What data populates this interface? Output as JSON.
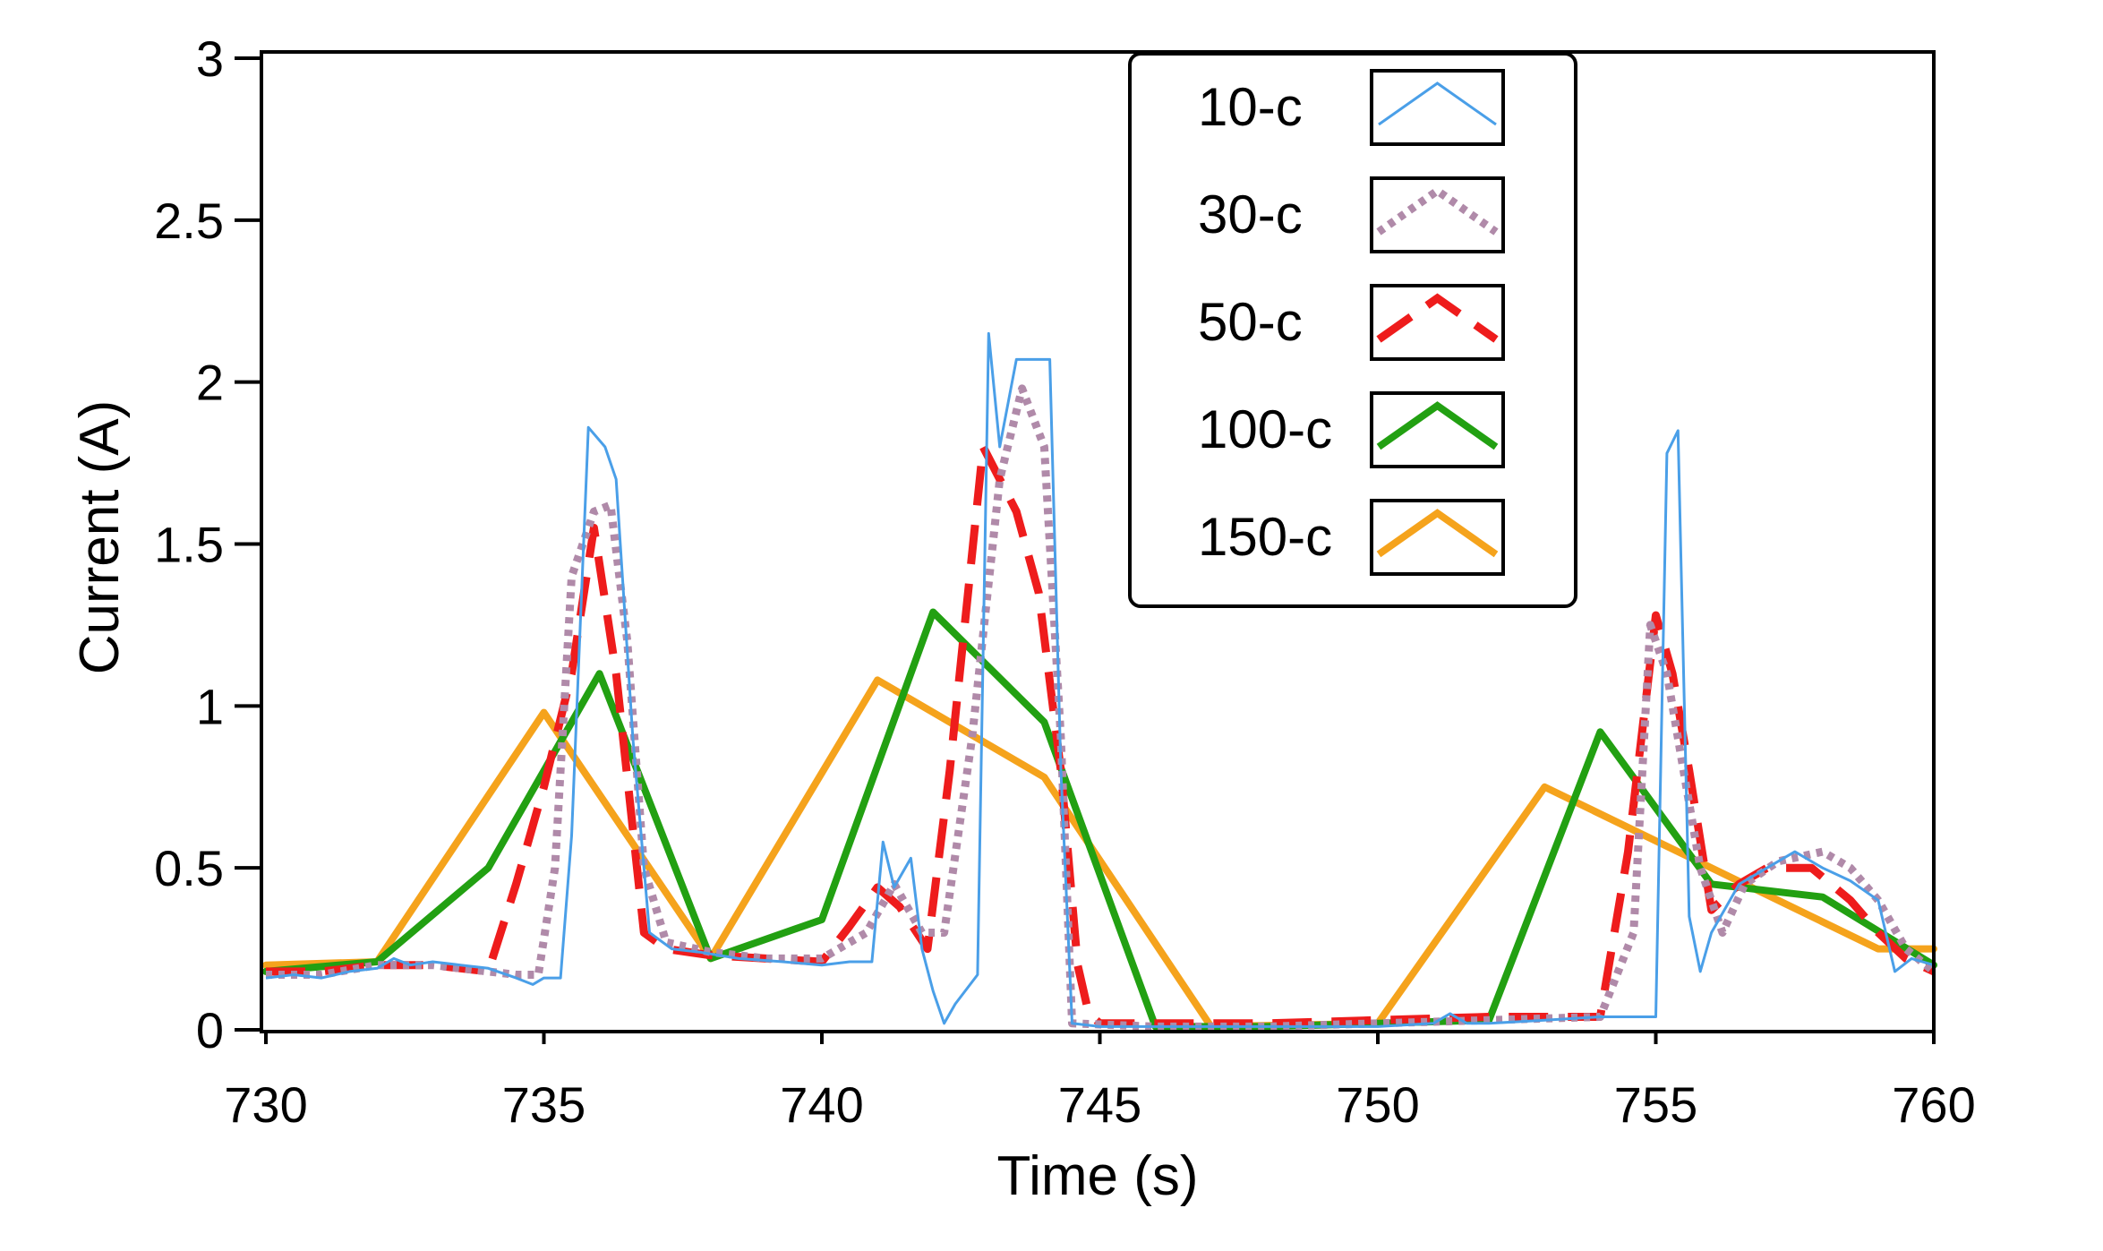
{
  "chart_data": {
    "type": "line",
    "title": "",
    "xlabel": "Time (s)",
    "ylabel": "Current (A)",
    "xlim": [
      730,
      760
    ],
    "ylim": [
      0,
      3
    ],
    "xticks": [
      730,
      735,
      740,
      745,
      750,
      755,
      760
    ],
    "xtick_labels": [
      "730",
      "735",
      "740",
      "745",
      "750",
      "755",
      "760"
    ],
    "yticks": [
      0,
      0.5,
      1,
      1.5,
      2,
      2.5,
      3
    ],
    "ytick_labels": [
      "0",
      "0.5",
      "1",
      "1.5",
      "2",
      "2.5",
      "3"
    ],
    "grid": false,
    "legend_position": "top-right",
    "series": [
      {
        "name": "10-c",
        "color": "#4a9fe8",
        "style": "solid-thin",
        "points": [
          [
            730,
            0.16
          ],
          [
            730.5,
            0.17
          ],
          [
            731,
            0.16
          ],
          [
            731.5,
            0.18
          ],
          [
            732,
            0.19
          ],
          [
            732.3,
            0.22
          ],
          [
            732.6,
            0.2
          ],
          [
            733,
            0.21
          ],
          [
            733.5,
            0.2
          ],
          [
            734,
            0.19
          ],
          [
            734.5,
            0.16
          ],
          [
            734.8,
            0.14
          ],
          [
            735,
            0.16
          ],
          [
            735.3,
            0.16
          ],
          [
            735.5,
            0.6
          ],
          [
            735.8,
            1.86
          ],
          [
            736.1,
            1.8
          ],
          [
            736.3,
            1.7
          ],
          [
            736.6,
            0.9
          ],
          [
            736.9,
            0.3
          ],
          [
            737.3,
            0.25
          ],
          [
            737.8,
            0.24
          ],
          [
            738.5,
            0.22
          ],
          [
            739.3,
            0.21
          ],
          [
            740,
            0.2
          ],
          [
            740.5,
            0.21
          ],
          [
            740.9,
            0.21
          ],
          [
            741.1,
            0.58
          ],
          [
            741.3,
            0.44
          ],
          [
            741.6,
            0.53
          ],
          [
            741.8,
            0.25
          ],
          [
            742,
            0.12
          ],
          [
            742.2,
            0.02
          ],
          [
            742.4,
            0.08
          ],
          [
            742.8,
            0.17
          ],
          [
            743,
            2.15
          ],
          [
            743.2,
            1.8
          ],
          [
            743.5,
            2.07
          ],
          [
            744.1,
            2.07
          ],
          [
            744.3,
            0.8
          ],
          [
            744.5,
            0.02
          ],
          [
            745,
            0.01
          ],
          [
            746,
            0.01
          ],
          [
            748,
            0.01
          ],
          [
            750,
            0.01
          ],
          [
            751,
            0.02
          ],
          [
            751.3,
            0.05
          ],
          [
            751.6,
            0.02
          ],
          [
            752,
            0.02
          ],
          [
            753,
            0.03
          ],
          [
            754,
            0.04
          ],
          [
            755,
            0.04
          ],
          [
            755.2,
            1.78
          ],
          [
            755.4,
            1.85
          ],
          [
            755.6,
            0.35
          ],
          [
            755.8,
            0.18
          ],
          [
            756,
            0.3
          ],
          [
            756.5,
            0.45
          ],
          [
            757,
            0.5
          ],
          [
            757.5,
            0.55
          ],
          [
            758,
            0.5
          ],
          [
            758.5,
            0.46
          ],
          [
            759,
            0.4
          ],
          [
            759.3,
            0.18
          ],
          [
            759.6,
            0.22
          ],
          [
            760,
            0.2
          ]
        ]
      },
      {
        "name": "30-c",
        "color": "#b08aa9",
        "style": "dotted",
        "points": [
          [
            730,
            0.17
          ],
          [
            731,
            0.17
          ],
          [
            732,
            0.2
          ],
          [
            733,
            0.2
          ],
          [
            734,
            0.18
          ],
          [
            734.5,
            0.17
          ],
          [
            734.9,
            0.17
          ],
          [
            735.2,
            0.5
          ],
          [
            735.5,
            1.4
          ],
          [
            735.9,
            1.6
          ],
          [
            736.2,
            1.62
          ],
          [
            736.5,
            1.2
          ],
          [
            736.8,
            0.5
          ],
          [
            737.2,
            0.27
          ],
          [
            738,
            0.24
          ],
          [
            739,
            0.22
          ],
          [
            740,
            0.22
          ],
          [
            740.8,
            0.3
          ],
          [
            741.3,
            0.45
          ],
          [
            741.8,
            0.3
          ],
          [
            742.2,
            0.3
          ],
          [
            742.7,
            0.9
          ],
          [
            743.2,
            1.7
          ],
          [
            743.6,
            1.98
          ],
          [
            744,
            1.8
          ],
          [
            744.3,
            0.9
          ],
          [
            744.5,
            0.02
          ],
          [
            746,
            0.01
          ],
          [
            748,
            0.01
          ],
          [
            750,
            0.02
          ],
          [
            752,
            0.03
          ],
          [
            754,
            0.04
          ],
          [
            754.6,
            0.3
          ],
          [
            754.9,
            1.25
          ],
          [
            755.2,
            1.1
          ],
          [
            755.5,
            0.8
          ],
          [
            755.8,
            0.5
          ],
          [
            756.2,
            0.3
          ],
          [
            756.6,
            0.45
          ],
          [
            757.2,
            0.52
          ],
          [
            758,
            0.55
          ],
          [
            758.5,
            0.5
          ],
          [
            759,
            0.4
          ],
          [
            759.5,
            0.25
          ],
          [
            760,
            0.18
          ]
        ]
      },
      {
        "name": "50-c",
        "color": "#ee1c1c",
        "style": "dashed",
        "points": [
          [
            730,
            0.18
          ],
          [
            731,
            0.18
          ],
          [
            732,
            0.2
          ],
          [
            733,
            0.2
          ],
          [
            734,
            0.18
          ],
          [
            734.5,
            0.45
          ],
          [
            735,
            0.75
          ],
          [
            735.5,
            1.1
          ],
          [
            735.9,
            1.55
          ],
          [
            736.3,
            1.1
          ],
          [
            736.8,
            0.3
          ],
          [
            737.2,
            0.25
          ],
          [
            738,
            0.23
          ],
          [
            739,
            0.22
          ],
          [
            740,
            0.21
          ],
          [
            740.5,
            0.32
          ],
          [
            741,
            0.44
          ],
          [
            741.4,
            0.38
          ],
          [
            741.9,
            0.25
          ],
          [
            742.3,
            0.8
          ],
          [
            742.9,
            1.8
          ],
          [
            743.5,
            1.6
          ],
          [
            743.9,
            1.35
          ],
          [
            744.3,
            0.8
          ],
          [
            744.6,
            0.2
          ],
          [
            744.8,
            0.05
          ],
          [
            745,
            0.02
          ],
          [
            746,
            0.02
          ],
          [
            748,
            0.02
          ],
          [
            750,
            0.03
          ],
          [
            752,
            0.04
          ],
          [
            754,
            0.04
          ],
          [
            754.5,
            0.55
          ],
          [
            755,
            1.28
          ],
          [
            755.3,
            1.1
          ],
          [
            755.6,
            0.8
          ],
          [
            756,
            0.37
          ],
          [
            756.5,
            0.45
          ],
          [
            757,
            0.5
          ],
          [
            757.8,
            0.5
          ],
          [
            758.5,
            0.4
          ],
          [
            759,
            0.3
          ],
          [
            759.5,
            0.22
          ],
          [
            760,
            0.18
          ]
        ]
      },
      {
        "name": "100-c",
        "color": "#22a012",
        "style": "solid-thick",
        "points": [
          [
            730,
            0.18
          ],
          [
            732,
            0.21
          ],
          [
            734,
            0.5
          ],
          [
            736,
            1.1
          ],
          [
            738,
            0.22
          ],
          [
            740,
            0.34
          ],
          [
            742,
            1.29
          ],
          [
            744,
            0.95
          ],
          [
            746,
            0.01
          ],
          [
            748,
            0.01
          ],
          [
            750,
            0.02
          ],
          [
            752,
            0.03
          ],
          [
            754,
            0.92
          ],
          [
            756,
            0.45
          ],
          [
            758,
            0.41
          ],
          [
            760,
            0.2
          ]
        ]
      },
      {
        "name": "150-c",
        "color": "#f5a31c",
        "style": "solid-thick",
        "points": [
          [
            730,
            0.2
          ],
          [
            732,
            0.21
          ],
          [
            735,
            0.98
          ],
          [
            738,
            0.22
          ],
          [
            741,
            1.08
          ],
          [
            744,
            0.78
          ],
          [
            747,
            0.01
          ],
          [
            750,
            0.02
          ],
          [
            753,
            0.75
          ],
          [
            756,
            0.5
          ],
          [
            759,
            0.25
          ],
          [
            760,
            0.25
          ]
        ]
      }
    ]
  }
}
